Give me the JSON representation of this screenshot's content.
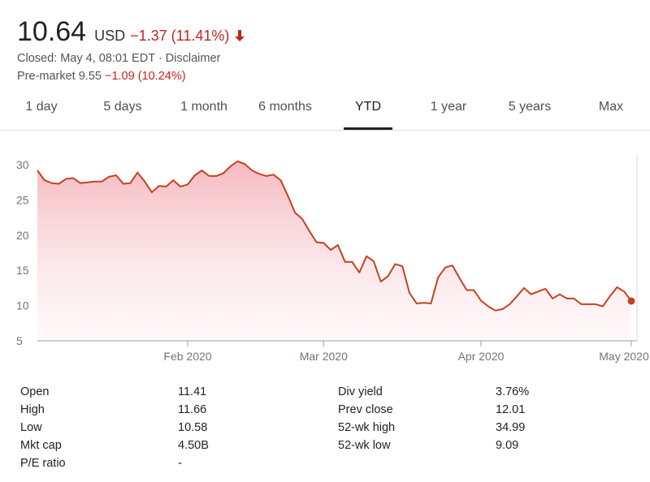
{
  "header": {
    "price": "10.64",
    "currency": "USD",
    "change": "−1.37 (11.41%)",
    "closed_text": "Closed: May 4, 08:01 EDT · Disclaimer",
    "premarket_label": "Pre-market 9.55",
    "premarket_change": "−1.09 (10.24%)",
    "colors": {
      "negative": "#c5221f",
      "line": "#c5421f",
      "fill": "#f4b6bd"
    }
  },
  "tabs": [
    {
      "label": "1 day",
      "active": false
    },
    {
      "label": "5 days",
      "active": false
    },
    {
      "label": "1 month",
      "active": false
    },
    {
      "label": "6 months",
      "active": false
    },
    {
      "label": "YTD",
      "active": true
    },
    {
      "label": "1 year",
      "active": false
    },
    {
      "label": "5 years",
      "active": false
    },
    {
      "label": "Max",
      "active": false
    }
  ],
  "chart_data": {
    "type": "area",
    "y_ticks": [
      "30",
      "25",
      "20",
      "15",
      "10",
      "5"
    ],
    "y_tick_values": [
      30,
      25,
      20,
      15,
      10,
      5
    ],
    "ylim": [
      5,
      31.5
    ],
    "x_ticks": [
      {
        "label": "Feb 2020",
        "index": 21
      },
      {
        "label": "Mar 2020",
        "index": 40
      },
      {
        "label": "Apr 2020",
        "index": 62
      },
      {
        "label": "May 2020",
        "index": 83
      }
    ],
    "x_range": [
      0,
      83
    ],
    "grid": false,
    "series": [
      {
        "values": [
          29.2,
          27.8,
          27.4,
          27.3,
          28.0,
          28.1,
          27.4,
          27.5,
          27.6,
          27.6,
          28.3,
          28.5,
          27.3,
          27.4,
          28.9,
          27.6,
          26.1,
          27.0,
          26.9,
          27.8,
          26.9,
          27.2,
          28.5,
          29.2,
          28.4,
          28.4,
          28.8,
          29.8,
          30.5,
          30.1,
          29.2,
          28.7,
          28.4,
          28.6,
          27.8,
          25.6,
          23.2,
          22.3,
          20.6,
          19.0,
          18.9,
          17.9,
          18.6,
          16.2,
          16.2,
          14.7,
          17.0,
          16.3,
          13.4,
          14.2,
          15.9,
          15.6,
          11.8,
          10.3,
          10.4,
          10.3,
          14.0,
          15.4,
          15.7,
          13.9,
          12.2,
          12.2,
          10.7,
          9.9,
          9.3,
          9.5,
          10.2,
          11.3,
          12.5,
          11.6,
          12.0,
          12.4,
          11.0,
          11.6,
          11.0,
          11.0,
          10.2,
          10.2,
          10.2,
          9.9,
          11.3,
          12.6,
          12.0,
          10.64
        ]
      }
    ]
  },
  "stats": {
    "left": [
      {
        "label": "Open",
        "value": "11.41"
      },
      {
        "label": "High",
        "value": "11.66"
      },
      {
        "label": "Low",
        "value": "10.58"
      },
      {
        "label": "Mkt cap",
        "value": "4.50B"
      },
      {
        "label": "P/E ratio",
        "value": "-"
      }
    ],
    "right": [
      {
        "label": "Div yield",
        "value": "3.76%"
      },
      {
        "label": "Prev close",
        "value": "12.01"
      },
      {
        "label": "52-wk high",
        "value": "34.99"
      },
      {
        "label": "52-wk low",
        "value": "9.09"
      }
    ]
  }
}
